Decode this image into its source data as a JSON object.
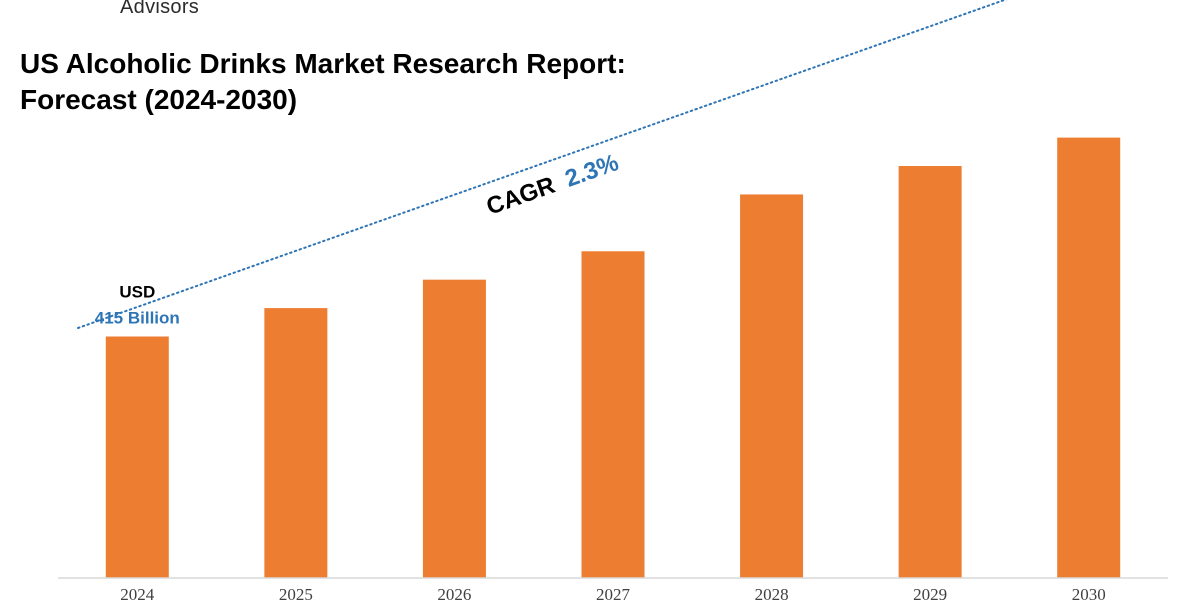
{
  "brand": {
    "text": "Advisors"
  },
  "chart_data": {
    "type": "bar",
    "title_line1": "US Alcoholic Drinks Market Research Report:",
    "title_line2": "Forecast (2024-2030)",
    "categories": [
      "2024",
      "2025",
      "2026",
      "2027",
      "2028",
      "2029",
      "2030"
    ],
    "values": [
      415,
      425,
      435,
      445,
      465,
      475,
      485
    ],
    "ylim": [
      330,
      500
    ],
    "xlabel": "",
    "ylabel": "",
    "grid": false,
    "bar_color": "#ed7d31",
    "annotation": {
      "line1": "USD",
      "line2": "415 Billion",
      "category": "2024"
    },
    "trend": {
      "label": "CAGR",
      "value": "2.3%",
      "color": "#2e75b6"
    }
  }
}
